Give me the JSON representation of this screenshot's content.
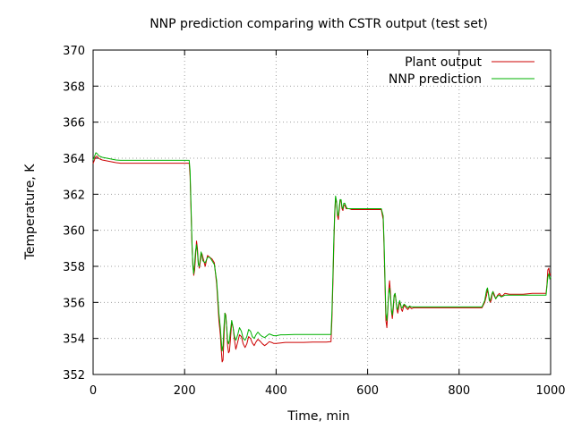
{
  "chart_data": {
    "type": "line",
    "title": "NNP prediction comparing with CSTR output (test set)",
    "xlabel": "Time, min",
    "ylabel": "Temperature, K",
    "xlim": [
      0,
      1000
    ],
    "ylim": [
      352,
      370
    ],
    "xticks": [
      0,
      200,
      400,
      600,
      800,
      1000
    ],
    "yticks": [
      352,
      354,
      356,
      358,
      360,
      362,
      364,
      366,
      368,
      370
    ],
    "grid": true,
    "legend_position": "top-right",
    "series": [
      {
        "name": "Plant output",
        "color": "#cc0000",
        "x": [
          0,
          3,
          6,
          9,
          12,
          15,
          20,
          30,
          40,
          50,
          60,
          80,
          100,
          150,
          200,
          210,
          212,
          214,
          216,
          218,
          220,
          222,
          224,
          226,
          228,
          230,
          232,
          234,
          236,
          238,
          240,
          245,
          250,
          255,
          260,
          265,
          270,
          275,
          278,
          280,
          282,
          284,
          286,
          288,
          290,
          292,
          294,
          296,
          298,
          300,
          303,
          306,
          309,
          312,
          316,
          320,
          324,
          328,
          332,
          336,
          340,
          344,
          348,
          352,
          356,
          360,
          365,
          370,
          375,
          380,
          385,
          390,
          395,
          400,
          410,
          420,
          440,
          460,
          480,
          500,
          510,
          520,
          522,
          524,
          526,
          528,
          530,
          532,
          534,
          536,
          538,
          540,
          542,
          544,
          546,
          548,
          550,
          553,
          556,
          560,
          565,
          570,
          575,
          580,
          590,
          600,
          620,
          630,
          634,
          636,
          638,
          640,
          642,
          644,
          646,
          648,
          650,
          652,
          654,
          656,
          658,
          660,
          662,
          664,
          666,
          668,
          670,
          672,
          674,
          676,
          678,
          680,
          684,
          688,
          692,
          696,
          700,
          710,
          720,
          740,
          760,
          780,
          800,
          820,
          850,
          856,
          860,
          862,
          864,
          866,
          868,
          870,
          872,
          874,
          876,
          880,
          884,
          888,
          892,
          896,
          900,
          910,
          920,
          940,
          960,
          980,
          990,
          992,
          994,
          996,
          998,
          1000
        ],
        "y": [
          363.7,
          363.9,
          364.1,
          364.1,
          364.0,
          363.95,
          363.9,
          363.85,
          363.8,
          363.75,
          363.72,
          363.72,
          363.72,
          363.72,
          363.72,
          363.72,
          363.0,
          361.0,
          359.2,
          358.1,
          357.5,
          357.8,
          358.6,
          359.4,
          359.0,
          358.2,
          357.9,
          358.2,
          358.6,
          358.7,
          358.5,
          358.0,
          358.6,
          358.5,
          358.4,
          358.2,
          357.0,
          355.0,
          354.2,
          353.4,
          352.7,
          352.8,
          354.0,
          355.4,
          355.3,
          354.6,
          353.6,
          353.2,
          353.3,
          353.9,
          354.9,
          354.6,
          353.9,
          353.4,
          353.8,
          354.2,
          354.1,
          353.7,
          353.5,
          353.7,
          354.1,
          354.0,
          353.75,
          353.6,
          353.8,
          353.95,
          353.85,
          353.7,
          353.6,
          353.7,
          353.82,
          353.78,
          353.72,
          353.72,
          353.75,
          353.78,
          353.78,
          353.78,
          353.8,
          353.8,
          353.8,
          353.82,
          355.0,
          357.0,
          359.0,
          360.8,
          361.8,
          361.5,
          360.8,
          360.6,
          361.1,
          361.7,
          361.6,
          361.2,
          361.1,
          361.4,
          361.4,
          361.2,
          361.2,
          361.2,
          361.15,
          361.15,
          361.15,
          361.15,
          361.15,
          361.15,
          361.15,
          361.15,
          360.6,
          359.0,
          357.0,
          355.0,
          354.6,
          355.5,
          356.6,
          357.2,
          356.5,
          355.5,
          355.1,
          355.6,
          356.3,
          356.5,
          356.1,
          355.6,
          355.4,
          355.7,
          356.0,
          355.9,
          355.6,
          355.5,
          355.7,
          355.85,
          355.7,
          355.6,
          355.75,
          355.65,
          355.7,
          355.7,
          355.7,
          355.7,
          355.7,
          355.7,
          355.7,
          355.7,
          355.7,
          356.0,
          356.4,
          356.7,
          356.5,
          356.2,
          356.0,
          356.1,
          356.4,
          356.6,
          356.5,
          356.2,
          356.4,
          356.5,
          356.35,
          356.4,
          356.5,
          356.45,
          356.45,
          356.45,
          356.5,
          356.5,
          356.5,
          357.0,
          357.8,
          357.9,
          357.5,
          357.6
        ]
      },
      {
        "name": "NNP prediction",
        "color": "#00b000",
        "x": [
          0,
          3,
          6,
          9,
          12,
          15,
          20,
          30,
          40,
          50,
          60,
          80,
          100,
          150,
          200,
          210,
          212,
          214,
          216,
          218,
          220,
          222,
          224,
          226,
          228,
          230,
          232,
          234,
          236,
          238,
          240,
          245,
          250,
          255,
          260,
          265,
          270,
          275,
          278,
          280,
          282,
          284,
          286,
          288,
          290,
          292,
          294,
          296,
          298,
          300,
          303,
          306,
          309,
          312,
          316,
          320,
          324,
          328,
          332,
          336,
          340,
          344,
          348,
          352,
          356,
          360,
          365,
          370,
          375,
          380,
          385,
          390,
          395,
          400,
          410,
          420,
          440,
          460,
          480,
          500,
          510,
          520,
          522,
          524,
          526,
          528,
          530,
          532,
          534,
          536,
          538,
          540,
          542,
          544,
          546,
          548,
          550,
          553,
          556,
          560,
          565,
          570,
          575,
          580,
          590,
          600,
          620,
          630,
          634,
          636,
          638,
          640,
          642,
          644,
          646,
          648,
          650,
          652,
          654,
          656,
          658,
          660,
          662,
          664,
          666,
          668,
          670,
          672,
          674,
          676,
          678,
          680,
          684,
          688,
          692,
          696,
          700,
          710,
          720,
          740,
          760,
          780,
          800,
          820,
          850,
          856,
          860,
          862,
          864,
          866,
          868,
          870,
          872,
          874,
          876,
          880,
          884,
          888,
          892,
          896,
          900,
          910,
          920,
          940,
          960,
          980,
          990,
          992,
          994,
          996,
          998,
          1000
        ],
        "y": [
          363.9,
          364.1,
          364.3,
          364.25,
          364.15,
          364.1,
          364.05,
          364.0,
          363.95,
          363.9,
          363.88,
          363.88,
          363.88,
          363.88,
          363.88,
          363.88,
          363.3,
          361.3,
          359.4,
          358.0,
          357.6,
          358.2,
          358.9,
          359.2,
          358.8,
          358.1,
          358.0,
          358.4,
          358.8,
          358.6,
          358.3,
          358.2,
          358.5,
          358.5,
          358.3,
          358.1,
          357.2,
          355.4,
          354.6,
          353.9,
          353.3,
          353.6,
          354.6,
          355.4,
          355.2,
          354.6,
          353.9,
          353.7,
          353.9,
          354.4,
          355.0,
          354.6,
          354.1,
          353.9,
          354.2,
          354.6,
          354.4,
          354.0,
          353.9,
          354.1,
          354.5,
          354.4,
          354.1,
          354.0,
          354.2,
          354.35,
          354.2,
          354.1,
          354.05,
          354.15,
          354.25,
          354.2,
          354.15,
          354.15,
          354.2,
          354.2,
          354.22,
          354.22,
          354.22,
          354.22,
          354.22,
          354.22,
          355.4,
          357.4,
          359.4,
          361.0,
          361.9,
          361.6,
          360.9,
          360.8,
          361.3,
          361.7,
          361.7,
          361.3,
          361.2,
          361.5,
          361.5,
          361.3,
          361.2,
          361.2,
          361.2,
          361.2,
          361.2,
          361.2,
          361.2,
          361.2,
          361.2,
          361.2,
          360.8,
          359.3,
          357.3,
          355.4,
          355.0,
          355.6,
          356.5,
          356.8,
          356.3,
          355.6,
          355.3,
          355.8,
          356.4,
          356.5,
          356.1,
          355.7,
          355.6,
          355.9,
          356.1,
          355.9,
          355.7,
          355.7,
          355.85,
          355.9,
          355.8,
          355.7,
          355.8,
          355.75,
          355.75,
          355.75,
          355.75,
          355.75,
          355.75,
          355.75,
          355.75,
          355.75,
          355.75,
          356.1,
          356.7,
          356.8,
          356.5,
          356.1,
          356.1,
          356.3,
          356.5,
          356.6,
          356.4,
          356.2,
          356.35,
          356.4,
          356.3,
          356.35,
          356.4,
          356.4,
          356.4,
          356.4,
          356.4,
          356.4,
          356.4,
          356.9,
          357.4,
          357.6,
          357.3,
          357.4
        ]
      }
    ]
  }
}
